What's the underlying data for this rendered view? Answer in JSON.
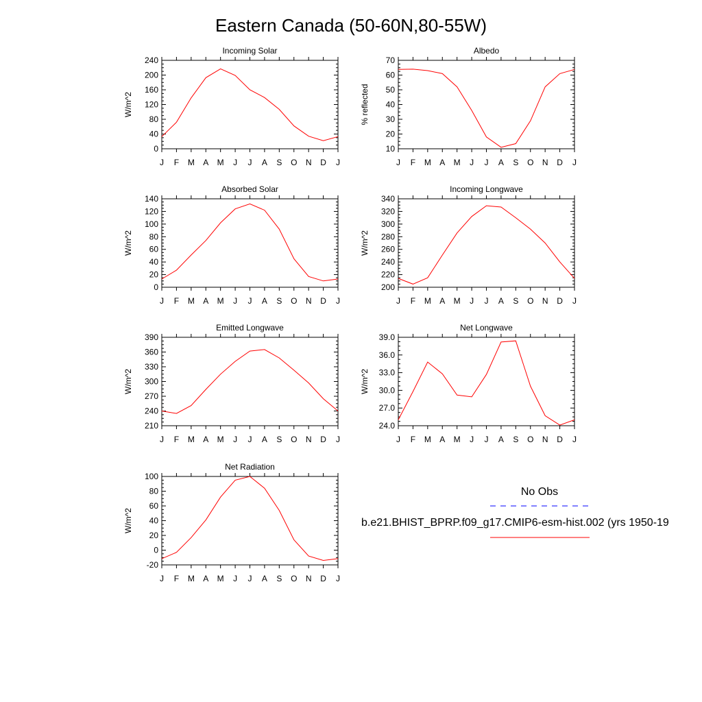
{
  "figure_title": "Eastern Canada (50-60N,80-55W)",
  "colors": {
    "model_line": "#ff0000",
    "obs_line": "#0000ff",
    "axis": "#000000"
  },
  "legend": {
    "obs_label": "No Obs",
    "model_label": "b.e21.BHIST_BPRP.f09_g17.CMIP6-esm-hist.002 (yrs 1950-19"
  },
  "chart_data": [
    {
      "type": "line",
      "title": "Incoming Solar",
      "ylabel": "W/m^2",
      "xlabel": "",
      "x": [
        "J",
        "F",
        "M",
        "A",
        "M",
        "J",
        "J",
        "A",
        "S",
        "O",
        "N",
        "D",
        "J"
      ],
      "ylim": [
        0,
        240
      ],
      "yticks": [
        "0",
        "40",
        "80",
        "120",
        "160",
        "200",
        "240"
      ],
      "series": [
        {
          "values": [
            33,
            72,
            138,
            193,
            217,
            199,
            160,
            139,
            107,
            62,
            34,
            22,
            33
          ]
        }
      ]
    },
    {
      "type": "line",
      "title": "Albedo",
      "ylabel": "% reflected",
      "xlabel": "",
      "x": [
        "J",
        "F",
        "M",
        "A",
        "M",
        "J",
        "J",
        "A",
        "S",
        "O",
        "N",
        "D",
        "J"
      ],
      "ylim": [
        10,
        70
      ],
      "yticks": [
        "10",
        "20",
        "30",
        "40",
        "50",
        "60",
        "70"
      ],
      "series": [
        {
          "values": [
            63.8,
            64,
            63,
            61,
            52,
            36,
            18,
            11,
            13.5,
            29,
            52,
            61,
            63.8
          ]
        }
      ]
    },
    {
      "type": "line",
      "title": "Absorbed Solar",
      "ylabel": "W/m^2",
      "xlabel": "",
      "x": [
        "J",
        "F",
        "M",
        "A",
        "M",
        "J",
        "J",
        "A",
        "S",
        "O",
        "N",
        "D",
        "J"
      ],
      "ylim": [
        0,
        140
      ],
      "yticks": [
        "0",
        "20",
        "40",
        "60",
        "80",
        "100",
        "120",
        "140"
      ],
      "series": [
        {
          "values": [
            13,
            27,
            51,
            74,
            102,
            124,
            132,
            122,
            92,
            45,
            17,
            10,
            13
          ]
        }
      ]
    },
    {
      "type": "line",
      "title": "Incoming Longwave",
      "ylabel": "W/m^2",
      "xlabel": "",
      "x": [
        "J",
        "F",
        "M",
        "A",
        "M",
        "J",
        "J",
        "A",
        "S",
        "O",
        "N",
        "D",
        "J"
      ],
      "ylim": [
        200,
        340
      ],
      "yticks": [
        "200",
        "220",
        "240",
        "260",
        "280",
        "300",
        "320",
        "340"
      ],
      "series": [
        {
          "values": [
            214,
            205,
            215,
            251,
            286,
            312,
            329,
            327,
            310,
            292,
            270,
            240,
            214
          ]
        }
      ]
    },
    {
      "type": "line",
      "title": "Emitted Longwave",
      "ylabel": "W/m^2",
      "xlabel": "",
      "x": [
        "J",
        "F",
        "M",
        "A",
        "M",
        "J",
        "J",
        "A",
        "S",
        "O",
        "N",
        "D",
        "J"
      ],
      "ylim": [
        210,
        390
      ],
      "yticks": [
        "210",
        "240",
        "270",
        "300",
        "330",
        "360",
        "390"
      ],
      "series": [
        {
          "values": [
            240,
            235,
            251,
            284,
            315,
            341,
            362,
            365,
            348,
            323,
            297,
            265,
            240
          ]
        }
      ]
    },
    {
      "type": "line",
      "title": "Net Longwave",
      "ylabel": "W/m^2",
      "xlabel": "",
      "x": [
        "J",
        "F",
        "M",
        "A",
        "M",
        "J",
        "J",
        "A",
        "S",
        "O",
        "N",
        "D",
        "J"
      ],
      "ylim": [
        24,
        39
      ],
      "yticks": [
        "24.0",
        "27.0",
        "30.0",
        "33.0",
        "36.0",
        "39.0"
      ],
      "series": [
        {
          "values": [
            25,
            29.8,
            34.8,
            32.8,
            29.2,
            28.9,
            32.7,
            38.2,
            38.4,
            30.7,
            25.7,
            24.1,
            25
          ]
        }
      ]
    },
    {
      "type": "line",
      "title": "Net Radiation",
      "ylabel": "W/m^2",
      "xlabel": "",
      "x": [
        "J",
        "F",
        "M",
        "A",
        "M",
        "J",
        "J",
        "A",
        "S",
        "O",
        "N",
        "D",
        "J"
      ],
      "ylim": [
        -20,
        100
      ],
      "yticks": [
        "-20",
        "0",
        "20",
        "40",
        "60",
        "80",
        "100"
      ],
      "series": [
        {
          "values": [
            -11.5,
            -3,
            17,
            41,
            72,
            95,
            100,
            84,
            54,
            14,
            -8,
            -14,
            -11.5
          ]
        }
      ]
    }
  ]
}
